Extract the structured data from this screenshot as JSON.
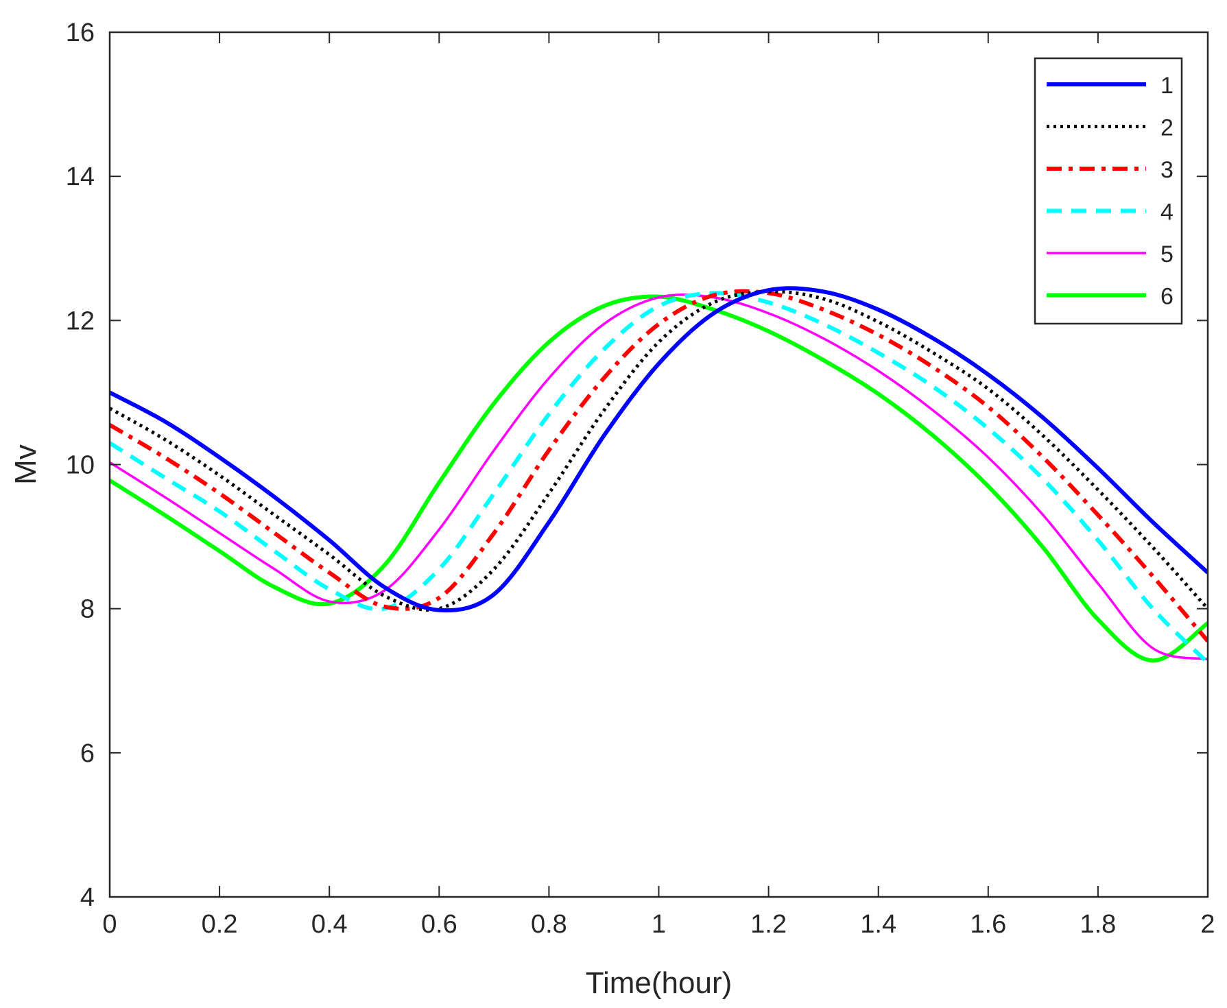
{
  "chart_data": {
    "type": "line",
    "title": "",
    "xlabel": "Time(hour)",
    "ylabel": "Mv",
    "xlim": [
      0,
      2
    ],
    "ylim": [
      4,
      16
    ],
    "xticks": [
      "0",
      "0.2",
      "0.4",
      "0.6",
      "0.8",
      "1",
      "1.2",
      "1.4",
      "1.6",
      "1.8",
      "2"
    ],
    "yticks": [
      "4",
      "6",
      "8",
      "10",
      "12",
      "14",
      "16"
    ],
    "grid": false,
    "legend_position": "top-right",
    "x": [
      0,
      0.1,
      0.2,
      0.3,
      0.4,
      0.5,
      0.6,
      0.7,
      0.8,
      0.9,
      1.0,
      1.1,
      1.2,
      1.3,
      1.4,
      1.5,
      1.6,
      1.7,
      1.8,
      1.9,
      2.0
    ],
    "series": [
      {
        "name": "1",
        "color": "#0000ff",
        "style": "solid",
        "width": 6,
        "values": [
          11.0,
          10.6,
          10.1,
          9.55,
          8.95,
          8.3,
          7.98,
          8.2,
          9.2,
          10.4,
          11.4,
          12.1,
          12.42,
          12.4,
          12.15,
          11.75,
          11.25,
          10.65,
          9.95,
          9.2,
          8.5
        ]
      },
      {
        "name": "2",
        "color": "#000000",
        "style": "dotted",
        "width": 5,
        "values": [
          10.78,
          10.35,
          9.85,
          9.3,
          8.75,
          8.18,
          8.0,
          8.55,
          9.6,
          10.75,
          11.7,
          12.25,
          12.4,
          12.3,
          11.98,
          11.55,
          11.05,
          10.4,
          9.65,
          8.85,
          8.0
        ]
      },
      {
        "name": "3",
        "color": "#ff0000",
        "style": "dashdot",
        "width": 6,
        "values": [
          10.55,
          10.1,
          9.6,
          9.05,
          8.5,
          8.03,
          8.15,
          9.05,
          10.2,
          11.2,
          11.95,
          12.35,
          12.38,
          12.15,
          11.8,
          11.35,
          10.8,
          10.1,
          9.3,
          8.45,
          7.55
        ]
      },
      {
        "name": "4",
        "color": "#00ffff",
        "style": "dashed",
        "width": 6,
        "values": [
          10.3,
          9.82,
          9.35,
          8.8,
          8.27,
          8.0,
          8.55,
          9.6,
          10.7,
          11.6,
          12.2,
          12.38,
          12.25,
          11.95,
          11.55,
          11.08,
          10.5,
          9.8,
          8.95,
          8.0,
          7.25
        ]
      },
      {
        "name": "5",
        "color": "#ff00ff",
        "style": "solid",
        "width": 3.5,
        "values": [
          10.03,
          9.55,
          9.05,
          8.55,
          8.1,
          8.25,
          9.1,
          10.2,
          11.2,
          11.95,
          12.32,
          12.32,
          12.1,
          11.75,
          11.3,
          10.75,
          10.1,
          9.3,
          8.35,
          7.45,
          7.3
        ]
      },
      {
        "name": "6",
        "color": "#00ff00",
        "style": "solid",
        "width": 6,
        "values": [
          9.78,
          9.3,
          8.8,
          8.3,
          8.07,
          8.6,
          9.75,
          10.85,
          11.7,
          12.2,
          12.33,
          12.15,
          11.85,
          11.45,
          10.98,
          10.4,
          9.7,
          8.85,
          7.85,
          7.28,
          7.8
        ]
      }
    ]
  }
}
